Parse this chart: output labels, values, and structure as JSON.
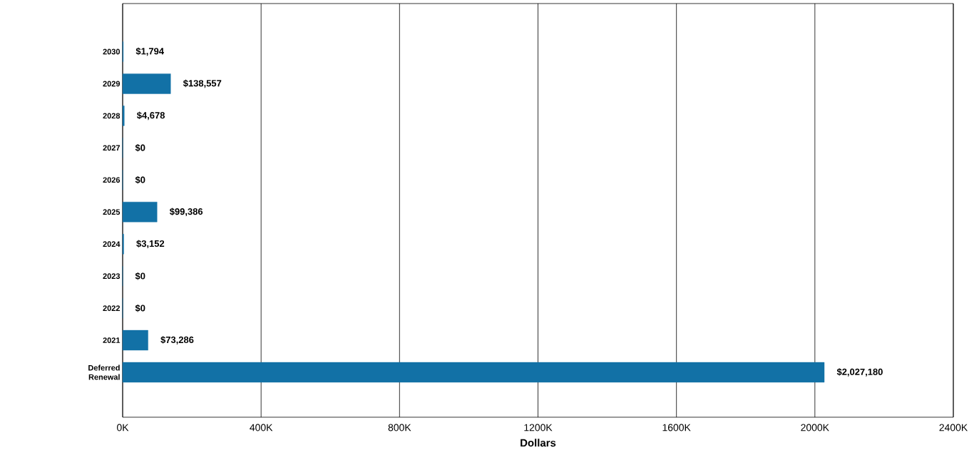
{
  "chart_data": {
    "type": "bar",
    "orientation": "horizontal",
    "xlabel": "Dollars",
    "categories": [
      "2030",
      "2029",
      "2028",
      "2027",
      "2026",
      "2025",
      "2024",
      "2023",
      "2022",
      "2021",
      "Deferred Renewal"
    ],
    "values": [
      1794,
      138557,
      4678,
      0,
      0,
      99386,
      3152,
      0,
      0,
      73286,
      2027180
    ],
    "value_labels": [
      "$1,794",
      "$138,557",
      "$4,678",
      "$0",
      "$0",
      "$99,386",
      "$3,152",
      "$0",
      "$0",
      "$73,286",
      "$2,027,180"
    ],
    "color": "#1271a6",
    "xlim": [
      0,
      2400000
    ],
    "xticks": [
      {
        "value": 0,
        "label": "0K"
      },
      {
        "value": 400000,
        "label": "400K"
      },
      {
        "value": 800000,
        "label": "800K"
      },
      {
        "value": 1200000,
        "label": "1200K"
      },
      {
        "value": 1600000,
        "label": "1600K"
      },
      {
        "value": 2000000,
        "label": "2000K"
      },
      {
        "value": 2400000,
        "label": "2400K"
      }
    ],
    "grid": "x"
  }
}
